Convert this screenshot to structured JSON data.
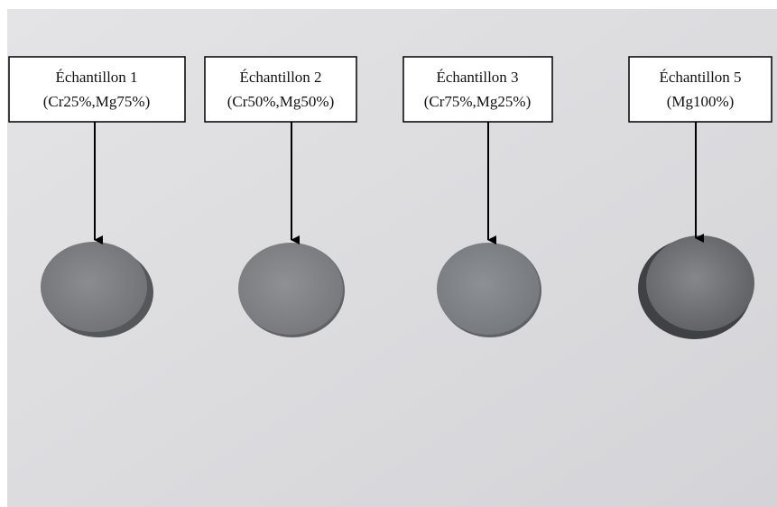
{
  "samples": [
    {
      "name": "Échantillon 1",
      "composition": "(Cr25%,Mg75%)"
    },
    {
      "name": "Échantillon 2",
      "composition": "(Cr50%,Mg50%)"
    },
    {
      "name": "Échantillon 3",
      "composition": "(Cr75%,Mg25%)"
    },
    {
      "name": "Échantillon 5",
      "composition": "(Mg100%)"
    }
  ]
}
